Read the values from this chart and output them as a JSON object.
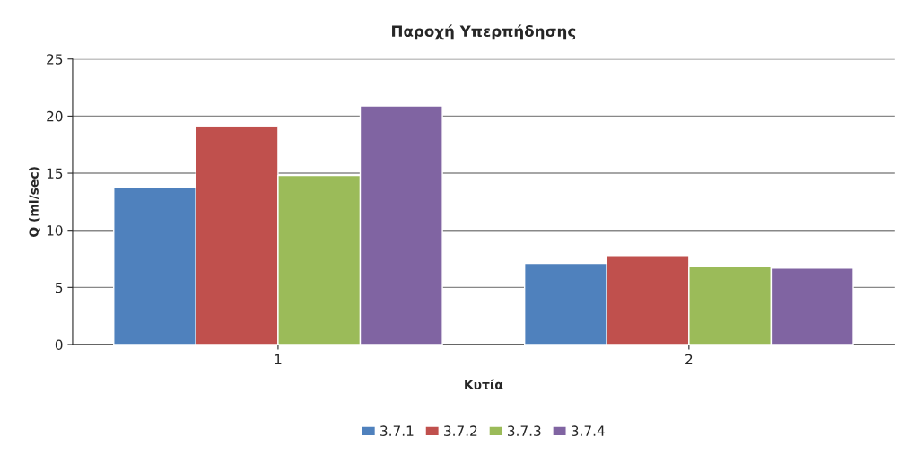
{
  "chart_data": {
    "type": "bar",
    "title": "Παροχή Υπερπήδησης",
    "xlabel": "Κυτία",
    "ylabel": "Q (ml/sec)",
    "categories": [
      "1",
      "2"
    ],
    "series": [
      {
        "name": "3.7.1",
        "color": "#4f81bd",
        "values": [
          13.8,
          7.1
        ]
      },
      {
        "name": "3.7.2",
        "color": "#c0504d",
        "values": [
          19.1,
          7.8
        ]
      },
      {
        "name": "3.7.3",
        "color": "#9bbb59",
        "values": [
          14.8,
          6.8
        ]
      },
      {
        "name": "3.7.4",
        "color": "#8064a2",
        "values": [
          20.9,
          6.7
        ]
      }
    ],
    "ylim": [
      0,
      25
    ],
    "yticks": [
      0,
      5,
      10,
      15,
      20,
      25
    ],
    "grid": "y",
    "legend": "bottom"
  }
}
